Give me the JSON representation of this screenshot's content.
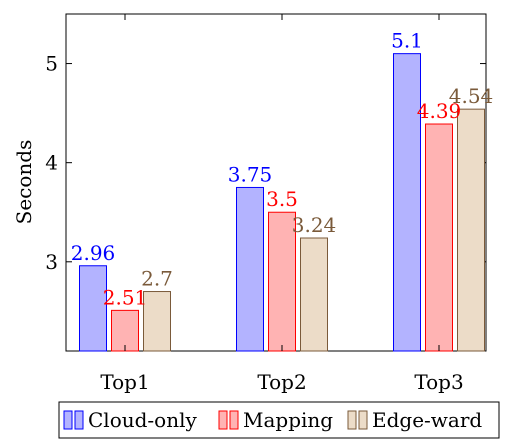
{
  "chart_data": {
    "type": "bar",
    "ylabel": "Seconds",
    "categories": [
      "Top1",
      "Top2",
      "Top3"
    ],
    "ylim": [
      2.1,
      5.5
    ],
    "yticks": [
      3,
      4,
      5
    ],
    "grid": false,
    "legend_position": "bottom",
    "series": [
      {
        "name": "Cloud-only",
        "values": [
          2.96,
          3.75,
          5.1
        ],
        "labels": [
          "2.96",
          "3.75",
          "5.1"
        ],
        "fill": "#b3b3ff",
        "stroke": "#0000ff",
        "label_color": "#0000ff"
      },
      {
        "name": "Mapping",
        "values": [
          2.51,
          3.5,
          4.39
        ],
        "labels": [
          "2.51",
          "3.5",
          "4.39"
        ],
        "fill": "#ffb3b3",
        "stroke": "#ff0000",
        "label_color": "#ff0000"
      },
      {
        "name": "Edge-ward",
        "values": [
          2.7,
          3.24,
          4.54
        ],
        "labels": [
          "2.7",
          "3.24",
          "4.54"
        ],
        "fill": "#ecdcc8",
        "stroke": "#7a5a3a",
        "label_color": "#7a5a3a"
      }
    ]
  }
}
